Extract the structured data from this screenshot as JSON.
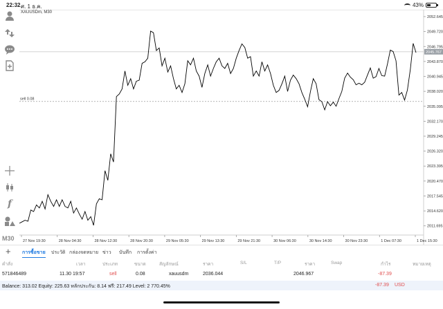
{
  "status_bar": {
    "time": "22:32",
    "date": "ศ. 1 ธ.ค.",
    "battery": "43%",
    "battery_level": 0.43
  },
  "left_toolbar": {
    "timeframe": "M30"
  },
  "chart": {
    "symbol_label": "XAUUSDm, M30",
    "current_price_label": "2045.767",
    "order_line_label": "sell 0.08",
    "line_color": "#000000",
    "current_price_color": "#9aa0a6"
  },
  "chart_data": {
    "type": "line",
    "title": "XAUUSDm, M30",
    "x_tick_labels": [
      "27 Nov 19:30",
      "28 Nov 04:30",
      "28 Nov 12:30",
      "28 Nov 20:30",
      "29 Nov 05:30",
      "29 Nov 13:30",
      "29 Nov 21:30",
      "30 Nov 06:30",
      "30 Nov 14:30",
      "30 Nov 23:30",
      "1 Dec 07:30",
      "1 Dec 15:30"
    ],
    "y_tick_labels": [
      "2052.645",
      "2049.720",
      "2046.795",
      "2043.870",
      "2040.945",
      "2038.020",
      "2035.095",
      "2032.170",
      "2029.245",
      "2026.320",
      "2023.395",
      "2020.470",
      "2017.545",
      "2014.620",
      "2011.695"
    ],
    "ylim": [
      2009.9,
      2054.0
    ],
    "horizontal_lines": [
      {
        "label": "sell 0.08",
        "value": 2036.044
      },
      {
        "label": "2045.767",
        "value": 2045.767
      }
    ],
    "series": [
      {
        "values": [
          2012.2,
          2012.5,
          2012.8,
          2012.6,
          2014.8,
          2014.5,
          2015.8,
          2015.2,
          2016.5,
          2015.0,
          2017.8,
          2016.5,
          2015.5,
          2016.8,
          2015.5,
          2016.8,
          2015.5,
          2015.2,
          2016.5,
          2014.2,
          2015.2,
          2014.0,
          2013.0,
          2014.5,
          2012.8,
          2013.5,
          2011.8,
          2016.0,
          2017.0,
          2016.8,
          2022.5,
          2020.6,
          2025.8,
          2024.2,
          2037.0,
          2037.5,
          2038.5,
          2042.0,
          2039.2,
          2040.5,
          2038.5,
          2040.0,
          2040.2,
          2043.5,
          2043.8,
          2044.5,
          2049.8,
          2049.5,
          2046.0,
          2046.5,
          2043.0,
          2044.5,
          2041.8,
          2043.0,
          2040.5,
          2038.5,
          2039.2,
          2037.8,
          2039.5,
          2044.0,
          2043.2,
          2044.5,
          2042.0,
          2041.0,
          2038.8,
          2041.5,
          2043.2,
          2041.0,
          2042.5,
          2043.8,
          2044.5,
          2043.0,
          2042.5,
          2043.5,
          2041.5,
          2042.5,
          2044.5,
          2046.0,
          2047.3,
          2046.6,
          2044.5,
          2044.8,
          2041.0,
          2042.0,
          2041.0,
          2043.8,
          2042.0,
          2043.2,
          2041.5,
          2039.2,
          2037.8,
          2038.2,
          2039.5,
          2041.0,
          2038.0,
          2040.2,
          2041.2,
          2040.5,
          2039.5,
          2037.8,
          2036.5,
          2035.0,
          2038.0,
          2040.5,
          2039.5,
          2036.4,
          2036.0,
          2034.4,
          2036.0,
          2035.2,
          2035.9,
          2035.1,
          2036.6,
          2038.0,
          2040.6,
          2041.6,
          2040.8,
          2040.3,
          2039.3,
          2039.6,
          2039.3,
          2039.8,
          2041.2,
          2042.6,
          2040.6,
          2040.9,
          2042.5,
          2041.1,
          2041.0,
          2043.4,
          2046.1,
          2045.8,
          2044.0,
          2037.3,
          2037.8,
          2036.3,
          2038.3,
          2042.3,
          2047.4,
          2045.6
        ]
      }
    ]
  },
  "trade_tabs": {
    "items": [
      "การซื้อขาย",
      "ประวัติ",
      "กล่องจดหมาย",
      "ข่าว",
      "บันทึก",
      "การตั้งค่า"
    ]
  },
  "positions_table": {
    "headers": [
      "คำสั่ง",
      "เวลา",
      "ประเภท",
      "ขนาด",
      "สัญลักษณ์",
      "ราคา",
      "S/L",
      "T/P",
      "ราคา",
      "Swap",
      "กำไร",
      "หมายเหตุ"
    ],
    "rows": [
      {
        "order": "571846489",
        "time": "11.30 19:57",
        "type": "sell",
        "volume": "0.08",
        "symbol": "xauusdm",
        "open_price": "2036.044",
        "current_price": "2046.967",
        "profit": "-87.39"
      }
    ]
  },
  "account_summary": {
    "text": "Balance: 313.02 Equity: 225.63 หลักประกัน: 8.14 ฟรี: 217.49 Level: 2 770.45%",
    "profit": "-87.39",
    "currency": "USD"
  }
}
